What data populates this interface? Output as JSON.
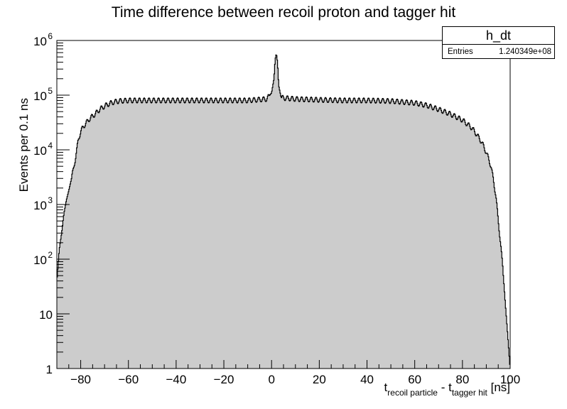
{
  "chart_data": {
    "type": "area",
    "title": "Time difference between recoil proton and tagger hit",
    "ylabel": "Events per 0.1 ns",
    "xlabel": {
      "main1": "t",
      "sub1": "recoil particle",
      "mid": " - t",
      "sub2": "tagger hit",
      "unit": " [ns]"
    },
    "xlim": [
      -90,
      100
    ],
    "ylim": [
      1,
      1000000
    ],
    "yscale": "log",
    "fill_color": "#cccccc",
    "line_color": "#000000",
    "x_ticks": [
      -80,
      -60,
      -40,
      -20,
      0,
      20,
      40,
      60,
      80,
      100
    ],
    "x_tick_labels": [
      "−80",
      "−60",
      "−40",
      "−20",
      "0",
      "20",
      "40",
      "60",
      "80",
      "100"
    ],
    "y_ticks": [
      {
        "value": 1,
        "base": "1",
        "exp": ""
      },
      {
        "value": 10,
        "base": "10",
        "exp": ""
      },
      {
        "value": 100,
        "base": "10",
        "exp": "2"
      },
      {
        "value": 1000,
        "base": "10",
        "exp": "3"
      },
      {
        "value": 10000,
        "base": "10",
        "exp": "4"
      },
      {
        "value": 100000,
        "base": "10",
        "exp": "5"
      },
      {
        "value": 1000000,
        "base": "10",
        "exp": "6"
      }
    ],
    "envelope": {
      "x": [
        -90,
        -89,
        -88,
        -87,
        -86,
        -85,
        -84,
        -83,
        -82,
        -81,
        -80,
        -78,
        -76,
        -74,
        -72,
        -70,
        -68,
        -66,
        -64,
        -62,
        -60,
        -50,
        -40,
        -30,
        -20,
        -10,
        -2,
        0,
        1,
        1.5,
        2,
        2.5,
        3,
        4,
        6,
        10,
        20,
        30,
        40,
        50,
        60,
        65,
        70,
        75,
        80,
        84,
        86,
        88,
        90,
        92,
        94,
        95,
        96,
        97,
        98,
        99,
        100
      ],
      "y": [
        40,
        150,
        300,
        700,
        1200,
        1800,
        2800,
        4500,
        8000,
        15000,
        22000,
        30000,
        38000,
        45000,
        55000,
        63000,
        70000,
        75000,
        78000,
        79000,
        80000,
        80000,
        80000,
        80000,
        80000,
        80000,
        85000,
        110000,
        200000,
        450000,
        580000,
        400000,
        150000,
        90000,
        88000,
        85000,
        82000,
        80000,
        80000,
        78000,
        72000,
        65000,
        55000,
        45000,
        35000,
        25000,
        19000,
        14000,
        9000,
        5000,
        1500,
        500,
        200,
        60,
        15,
        4,
        1
      ]
    },
    "oscillation": {
      "period_ns": 2,
      "amplitude_decades": 0.045
    }
  },
  "stats_box": {
    "name": "h_dt",
    "entries_label": "Entries",
    "entries_value": "1.240349e+08"
  }
}
